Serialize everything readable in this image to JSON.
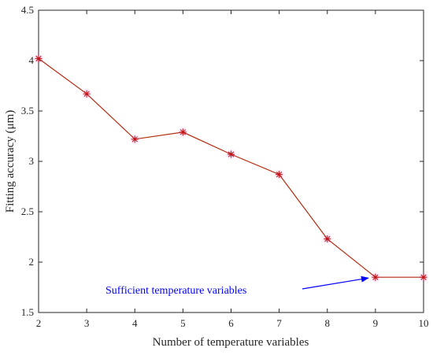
{
  "chart_data": {
    "type": "line",
    "title": "",
    "xlabel": "Number of temperature variables",
    "ylabel": "Fitting accuracy (μm)",
    "xlim": [
      2,
      10
    ],
    "ylim": [
      1.5,
      4.5
    ],
    "x_ticks": [
      "2",
      "3",
      "4",
      "5",
      "6",
      "7",
      "8",
      "9",
      "10"
    ],
    "y_ticks": [
      "1.5",
      "2",
      "2.5",
      "3",
      "3.5",
      "4",
      "4.5"
    ],
    "grid": false,
    "legend": "none",
    "series": [
      {
        "x": [
          2,
          3,
          4,
          5,
          6,
          7,
          8,
          9,
          10
        ],
        "values": [
          4.02,
          3.67,
          3.22,
          3.29,
          3.07,
          2.87,
          2.23,
          1.85,
          1.85
        ],
        "line_color": "#b22a0c",
        "marker": "asterisk",
        "marker_color": "#c0141a"
      }
    ],
    "annotations": [
      {
        "text": "Sufficient temperature variables",
        "color": "#0000ff",
        "arrow_to": {
          "x": 9,
          "y": 1.85
        }
      }
    ]
  }
}
